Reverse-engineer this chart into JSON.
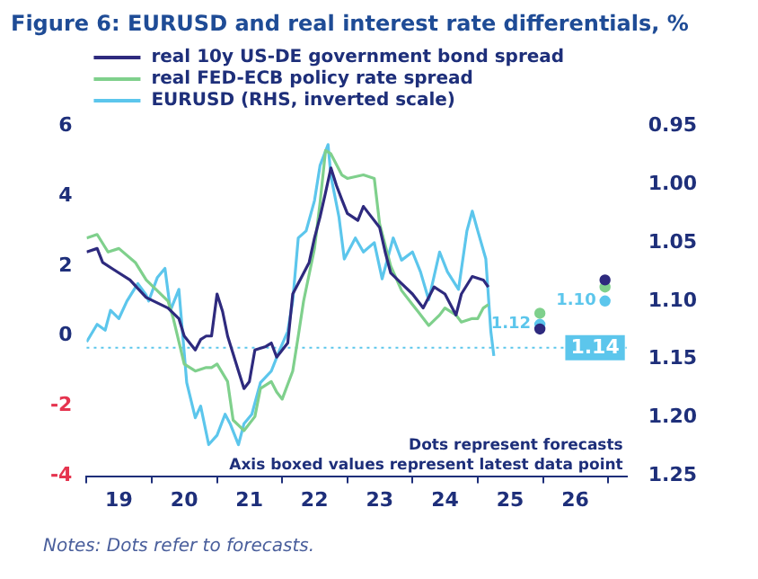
{
  "chart_data": {
    "type": "line",
    "title": "Figure 6: EURUSD and real interest rate differentials, %",
    "xlim": [
      "2019-01-01",
      "2027-04-15"
    ],
    "xticks": [
      {
        "value": "2019-01-01",
        "label": null
      },
      {
        "value": "2019-07-01",
        "label": "19"
      },
      {
        "value": "2020-01-01",
        "label": null
      },
      {
        "value": "2020-07-01",
        "label": "20"
      },
      {
        "value": "2021-01-01",
        "label": null
      },
      {
        "value": "2021-07-01",
        "label": "21"
      },
      {
        "value": "2022-01-01",
        "label": null
      },
      {
        "value": "2022-07-01",
        "label": "22"
      },
      {
        "value": "2023-01-01",
        "label": null
      },
      {
        "value": "2023-07-01",
        "label": "23"
      },
      {
        "value": "2024-01-01",
        "label": null
      },
      {
        "value": "2024-07-01",
        "label": "24"
      },
      {
        "value": "2025-01-01",
        "label": null
      },
      {
        "value": "2025-07-01",
        "label": "25"
      },
      {
        "value": "2026-01-01",
        "label": null
      },
      {
        "value": "2026-07-01",
        "label": "26"
      },
      {
        "value": "2027-01-01",
        "label": null
      }
    ],
    "ylim": [
      -4,
      6
    ],
    "yticks": [
      -4,
      -2,
      0,
      2,
      4,
      6
    ],
    "y2lim": [
      1.25,
      0.95
    ],
    "y2ticks": [
      {
        "value": 0.95,
        "label": "0.95"
      },
      {
        "value": 1,
        "label": "1.00"
      },
      {
        "value": 1.05,
        "label": "1.05"
      },
      {
        "value": 1.1,
        "label": "1.10"
      },
      {
        "value": 1.15,
        "label": "1.15"
      },
      {
        "value": 1.2,
        "label": "1.20"
      },
      {
        "value": 1.25,
        "label": "1.25"
      }
    ],
    "legend": "top left",
    "marker": "none",
    "line_style": "solid",
    "series": [
      {
        "name": "real 10y US-DE government bond spread",
        "color": "#2e2a7e",
        "x": [
          "2019-01",
          "2019-03",
          "2019-04",
          "2019-06",
          "2019-09",
          "2019-12",
          "2020-04",
          "2020-06",
          "2020-07",
          "2020-09",
          "2020-10",
          "2020-11",
          "2020-12",
          "2021-01",
          "2021-02",
          "2021-03",
          "2021-05",
          "2021-06",
          "2021-07",
          "2021-08",
          "2021-10",
          "2021-11",
          "2021-12",
          "2022-02",
          "2022-03",
          "2022-04",
          "2022-06",
          "2022-07",
          "2022-08",
          "2022-09",
          "2022-10",
          "2022-11",
          "2022-12",
          "2023-01",
          "2023-03",
          "2023-04",
          "2023-05",
          "2023-07",
          "2023-08",
          "2023-09",
          "2023-11",
          "2024-01",
          "2024-03",
          "2024-05",
          "2024-07",
          "2024-09",
          "2024-10",
          "2024-12",
          "2025-02",
          "2025-03"
        ],
        "values": [
          2.4,
          2.5,
          2.1,
          1.9,
          1.6,
          1.1,
          0.8,
          0.5,
          0,
          -0.4,
          -0.1,
          0,
          0,
          1.2,
          0.7,
          0,
          -1,
          -1.5,
          -1.3,
          -0.4,
          -0.3,
          -0.2,
          -0.6,
          -0.2,
          1.2,
          1.5,
          2.1,
          2.8,
          3.4,
          4.1,
          4.8,
          4.3,
          3.9,
          3.5,
          3.3,
          3.7,
          3.5,
          3.1,
          2.4,
          1.8,
          1.5,
          1.2,
          0.8,
          1.4,
          1.2,
          0.6,
          1.2,
          1.7,
          1.6,
          1.4
        ]
      },
      {
        "name": "real FED-ECB policy rate spread",
        "color": "#7fd08c",
        "x": [
          "2019-01",
          "2019-03",
          "2019-05",
          "2019-07",
          "2019-10",
          "2019-12",
          "2020-04",
          "2020-05",
          "2020-07",
          "2020-09",
          "2020-11",
          "2020-12",
          "2021-01",
          "2021-03",
          "2021-04",
          "2021-06",
          "2021-08",
          "2021-09",
          "2021-11",
          "2021-12",
          "2022-01",
          "2022-03",
          "2022-04",
          "2022-05",
          "2022-07",
          "2022-08",
          "2022-09",
          "2022-10",
          "2022-12",
          "2023-01",
          "2023-04",
          "2023-06",
          "2023-07",
          "2023-09",
          "2023-11",
          "2024-01",
          "2024-02",
          "2024-04",
          "2024-06",
          "2024-07",
          "2024-09",
          "2024-10",
          "2024-12",
          "2025-01",
          "2025-02",
          "2025-03"
        ],
        "values": [
          2.8,
          2.9,
          2.4,
          2.5,
          2.1,
          1.6,
          1.0,
          0.5,
          -0.8,
          -1.0,
          -0.9,
          -0.9,
          -0.8,
          -1.3,
          -2.4,
          -2.7,
          -2.3,
          -1.5,
          -1.3,
          -1.6,
          -1.8,
          -1.0,
          0,
          1.0,
          2.5,
          3.8,
          5.3,
          5.2,
          4.6,
          4.5,
          4.6,
          4.5,
          3.2,
          2.0,
          1.3,
          0.9,
          0.7,
          0.3,
          0.6,
          0.8,
          0.6,
          0.4,
          0.5,
          0.5,
          0.8,
          0.9
        ]
      },
      {
        "name": "EURUSD (RHS, inverted scale)",
        "color": "#5cc6ec",
        "axis": "y2",
        "x": [
          "2019-01-01",
          "2019-03-01",
          "2019-04-15",
          "2019-05-15",
          "2019-07-01",
          "2019-08-15",
          "2019-10-15",
          "2019-12-01",
          "2019-12-15",
          "2020-02-01",
          "2020-03-15",
          "2020-04-15",
          "2020-06-01",
          "2020-07-15",
          "2020-09-01",
          "2020-10-01",
          "2020-11-15",
          "2021-01-01",
          "2021-02-15",
          "2021-03-15",
          "2021-05-01",
          "2021-06-01",
          "2021-07-15",
          "2021-09-01",
          "2021-11-01",
          "2021-12-15",
          "2022-02-01",
          "2022-03-01",
          "2022-04-01",
          "2022-05-15",
          "2022-07-01",
          "2022-08-01",
          "2022-09-15",
          "2022-10-01",
          "2022-11-15",
          "2022-12-15",
          "2023-02-15",
          "2023-04-01",
          "2023-06-01",
          "2023-07-15",
          "2023-09-15",
          "2023-11-01",
          "2024-01-01",
          "2024-02-15",
          "2024-04-01",
          "2024-06-01",
          "2024-07-15",
          "2024-09-15",
          "2024-11-01",
          "2024-12-01",
          "2025-01-01",
          "2025-02-15",
          "2025-03-15",
          "2025-04-01"
        ],
        "values": [
          1.135,
          1.12,
          1.125,
          1.108,
          1.115,
          1.1,
          1.085,
          1.095,
          1.1,
          1.08,
          1.072,
          1.108,
          1.09,
          1.17,
          1.2,
          1.19,
          1.223,
          1.215,
          1.197,
          1.205,
          1.223,
          1.205,
          1.197,
          1.17,
          1.16,
          1.143,
          1.126,
          1.1,
          1.046,
          1.04,
          1.014,
          0.984,
          0.966,
          0.993,
          1.028,
          1.064,
          1.046,
          1.058,
          1.05,
          1.081,
          1.046,
          1.065,
          1.058,
          1.075,
          1.099,
          1.058,
          1.075,
          1.09,
          1.04,
          1.023,
          1.04,
          1.064,
          1.126,
          1.147
        ]
      },
      {
        "type": "scatter",
        "marker": "circle",
        "color": "#2e2a7e",
        "x": [
          "2025-12-15",
          "2026-12-15"
        ],
        "values": [
          0.2,
          1.6
        ]
      },
      {
        "type": "scatter",
        "marker": "circle",
        "color": "#7fd08c",
        "x": [
          "2025-12-15",
          "2026-12-15"
        ],
        "values": [
          0.65,
          1.4
        ]
      },
      {
        "type": "scatter",
        "marker": "circle",
        "color": "#5cc6ec",
        "axis": "y2",
        "x": [
          "2025-12-15",
          "2026-12-15"
        ],
        "values": [
          1.12,
          1.1
        ],
        "value_labels": [
          "1.12",
          "1.10"
        ]
      }
    ],
    "ref_lines": [
      {
        "axis": "y2",
        "value": 1.14,
        "label": "1.14",
        "color": "#5cc6ec",
        "line_style": "dotted"
      }
    ],
    "annotations": [
      "Dots represent forecasts",
      "Axis boxed values represent latest data point",
      "Notes: Dots refer to forecasts."
    ]
  }
}
